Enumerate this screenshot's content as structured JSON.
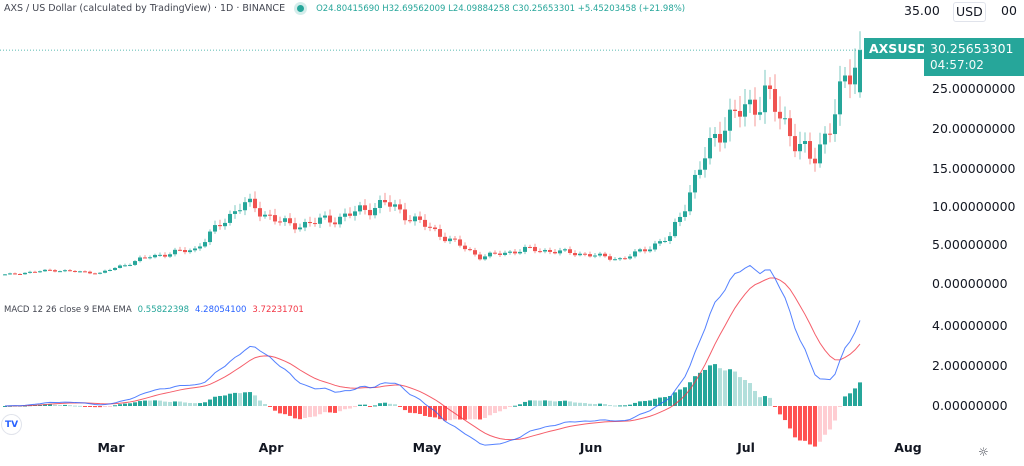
{
  "header": {
    "title": "AXS / US Dollar (calculated by TradingView) · 1D · BINANCE",
    "ohlc": "O24.80415690 H32.69562009 L24.09884258 C30.25653301 +5.45203458 (+21.98%)"
  },
  "price_axis": {
    "currency_button": "USD",
    "labels": [
      "35.00",
      "25.00000000",
      "20.00000000",
      "15.00000000",
      "10.00000000",
      "5.00000000",
      "0.00000000"
    ],
    "top_label_suffix": "00"
  },
  "last_price": {
    "symbol": "AXSUSD",
    "value": "30.25653301",
    "countdown": "04:57:02"
  },
  "macd": {
    "title": "MACD 12 26 close 9 EMA EMA",
    "histogram": "0.55822398",
    "macd": "4.28054100",
    "signal": "3.72231701",
    "axis_labels": [
      "4.00000000",
      "2.00000000",
      "0.00000000"
    ]
  },
  "time_axis": {
    "months": [
      "Mar",
      "Apr",
      "May",
      "Jun",
      "Jul",
      "Aug"
    ]
  },
  "colors": {
    "up": "#26a69a",
    "down": "#ef5350",
    "macd_line": "#2962ff",
    "signal_line": "#f23645",
    "hist_up_strong": "#26a69a",
    "hist_up_weak": "#b2dfdb",
    "hist_down_strong": "#ff5252",
    "hist_down_weak": "#ffcdd2"
  },
  "chart_data": [
    {
      "type": "candlestick",
      "title": "AXS / US Dollar (calculated by TradingView) · 1D · BINANCE",
      "xlabel": "",
      "ylabel": "USD",
      "ylim": [
        0,
        35
      ],
      "x_ticks": [
        "Mar",
        "Apr",
        "May",
        "Jun",
        "Jul",
        "Aug"
      ],
      "y_ticks": [
        0,
        5,
        10,
        15,
        20,
        25,
        35
      ],
      "grid": false,
      "last": {
        "open": 24.8041569,
        "high": 32.69562009,
        "low": 24.09884258,
        "close": 30.25653301,
        "change": 5.45203458,
        "change_pct": 21.98
      },
      "approx_closes_by_period": [
        {
          "period": "early Feb",
          "close": 1.2
        },
        {
          "period": "mid Feb",
          "close": 1.8
        },
        {
          "period": "early Mar",
          "close": 1.4
        },
        {
          "period": "mid Mar",
          "close": 3.5
        },
        {
          "period": "late Mar",
          "close": 4.5
        },
        {
          "period": "early Apr",
          "close": 10.5
        },
        {
          "period": "mid Apr",
          "close": 7.5
        },
        {
          "period": "late Apr",
          "close": 8.5
        },
        {
          "period": "early May",
          "close": 10.5
        },
        {
          "period": "mid May",
          "close": 7.0
        },
        {
          "period": "late May",
          "close": 3.5
        },
        {
          "period": "early Jun",
          "close": 4.5
        },
        {
          "period": "mid Jun",
          "close": 4.0
        },
        {
          "period": "late Jun",
          "close": 3.2
        },
        {
          "period": "early Jul",
          "close": 6.0
        },
        {
          "period": "mid Jul",
          "close": 20.0
        },
        {
          "period": "peak Jul",
          "close": 24.5
        },
        {
          "period": "dip Jul",
          "close": 15.5
        },
        {
          "period": "latest",
          "close": 30.26
        }
      ]
    },
    {
      "type": "line",
      "title": "MACD 12 26 close 9 EMA EMA",
      "ylim": [
        -1,
        4.5
      ],
      "y_ticks": [
        0,
        2,
        4
      ],
      "series": [
        {
          "name": "MACD",
          "last": 4.280541
        },
        {
          "name": "Signal",
          "last": 3.72231701
        },
        {
          "name": "Histogram",
          "last": 0.55822398
        }
      ]
    }
  ]
}
